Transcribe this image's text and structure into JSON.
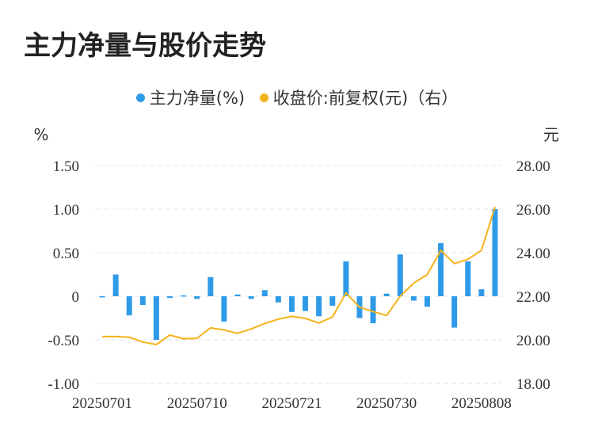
{
  "title": "主力净量与股价走势",
  "legend": {
    "items": [
      {
        "label": "主力净量(%)",
        "color": "#2f9be8"
      },
      {
        "label": "收盘价:前复权(元)（右）",
        "color": "#f5b31b"
      }
    ]
  },
  "chart_data": {
    "type": "bar+line",
    "left_axis": {
      "unit": "%",
      "min": -1.0,
      "max": 1.5,
      "ticks": [
        "1.50",
        "1.00",
        "0.50",
        "0",
        "-0.50",
        "-1.00"
      ],
      "tick_values": [
        1.5,
        1.0,
        0.5,
        0,
        -0.5,
        -1.0
      ]
    },
    "right_axis": {
      "unit": "元",
      "min": 18.0,
      "max": 28.0,
      "ticks": [
        "28.00",
        "26.00",
        "24.00",
        "22.00",
        "20.00",
        "18.00"
      ],
      "tick_values": [
        28,
        26,
        24,
        22,
        20,
        18
      ]
    },
    "x_tick_labels": [
      "20250701",
      "20250710",
      "20250721",
      "20250730",
      "20250808"
    ],
    "x_tick_indices": [
      0,
      7,
      14,
      21,
      28
    ],
    "grid": "horizontal dashed",
    "series": [
      {
        "name": "主力净量(%)",
        "kind": "bar",
        "axis": "left",
        "values": [
          -0.01,
          0.25,
          -0.22,
          -0.1,
          -0.5,
          -0.02,
          0.01,
          -0.03,
          0.22,
          -0.29,
          0.02,
          -0.03,
          0.07,
          -0.07,
          -0.18,
          -0.17,
          -0.23,
          -0.11,
          0.4,
          -0.25,
          -0.31,
          0.03,
          0.48,
          -0.05,
          -0.12,
          0.61,
          -0.36,
          0.4,
          0.08,
          1.0
        ]
      },
      {
        "name": "收盘价:前复权(元)（右）",
        "kind": "line",
        "axis": "right",
        "values": [
          20.15,
          20.15,
          20.12,
          19.9,
          19.78,
          20.22,
          20.05,
          20.07,
          20.55,
          20.45,
          20.3,
          20.5,
          20.75,
          20.95,
          21.08,
          20.98,
          20.77,
          21.05,
          22.15,
          21.5,
          21.3,
          21.12,
          22.0,
          22.6,
          23.0,
          24.1,
          23.5,
          23.7,
          24.1,
          26.1
        ]
      }
    ]
  }
}
